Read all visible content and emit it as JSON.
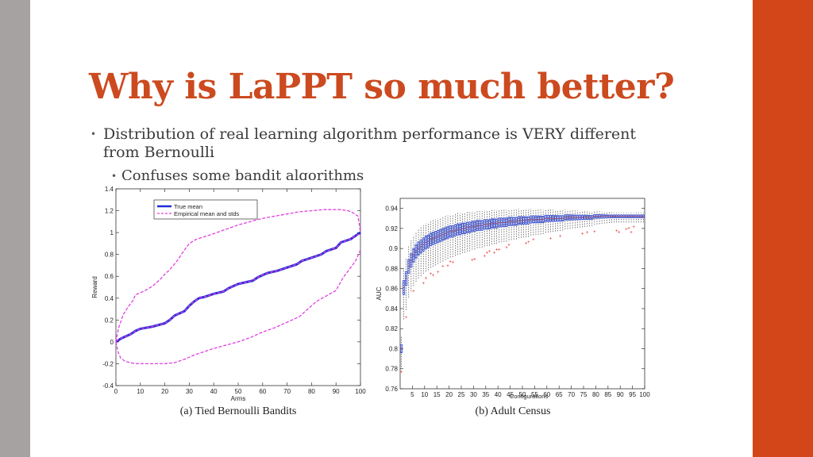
{
  "slide": {
    "title": "Why is LaPPT so much better?",
    "colors": {
      "title": "#cc4a1f",
      "left_bar": "#a6a2a2",
      "right_bar": "#d24619"
    },
    "bullets": [
      {
        "text": "Distribution of real learning algorithm performance is VERY different from Bernoulli",
        "level": 1
      },
      {
        "text": "Confuses some bandit algorithms",
        "level": 2
      }
    ]
  },
  "figures": [
    {
      "caption": "(a) Tied Bernoulli Bandits"
    },
    {
      "caption": "(b) Adult Census"
    }
  ],
  "chart_data": [
    {
      "type": "line",
      "xlabel": "Arms",
      "ylabel": "Reward",
      "xlim": [
        0,
        100
      ],
      "ylim": [
        -0.4,
        1.4
      ],
      "xticks": [
        0,
        10,
        20,
        30,
        40,
        50,
        60,
        70,
        80,
        90,
        100
      ],
      "yticks": [
        -0.4,
        -0.2,
        0,
        0.2,
        0.4,
        0.6,
        0.8,
        1,
        1.2,
        1.4
      ],
      "ytick_labels": [
        "-0.4",
        "-0.2",
        "0",
        "0.2",
        "0.4",
        "0.6",
        "0.8",
        "1",
        "1.2",
        "1.4"
      ],
      "grid": false,
      "legend": "top-left",
      "series": [
        {
          "name": "True mean",
          "style": "solid",
          "color": "#1f2bd6",
          "x": [
            0,
            2,
            4,
            6,
            8,
            10,
            15,
            20,
            22,
            24,
            28,
            30,
            32,
            34,
            36,
            40,
            44,
            46,
            48,
            50,
            52,
            56,
            58,
            60,
            62,
            66,
            70,
            74,
            76,
            80,
            84,
            86,
            90,
            92,
            96,
            98,
            100
          ],
          "y": [
            0.0,
            0.03,
            0.05,
            0.07,
            0.1,
            0.12,
            0.14,
            0.17,
            0.2,
            0.24,
            0.28,
            0.33,
            0.37,
            0.4,
            0.41,
            0.44,
            0.46,
            0.49,
            0.51,
            0.53,
            0.54,
            0.56,
            0.59,
            0.61,
            0.63,
            0.65,
            0.68,
            0.71,
            0.74,
            0.77,
            0.8,
            0.83,
            0.86,
            0.91,
            0.94,
            0.97,
            1.0
          ]
        },
        {
          "name": "Empirical mean and stds",
          "style": "dashed",
          "color": "#e040e0",
          "x": [
            0,
            2,
            4,
            6,
            8,
            10,
            15,
            20,
            22,
            24,
            28,
            30,
            32,
            34,
            36,
            40,
            44,
            46,
            48,
            50,
            52,
            56,
            58,
            60,
            62,
            66,
            70,
            74,
            76,
            80,
            84,
            86,
            90,
            92,
            96,
            98,
            100
          ],
          "y": [
            0.01,
            0.03,
            0.05,
            0.07,
            0.1,
            0.12,
            0.14,
            0.17,
            0.2,
            0.24,
            0.28,
            0.33,
            0.37,
            0.4,
            0.41,
            0.44,
            0.46,
            0.49,
            0.51,
            0.53,
            0.54,
            0.56,
            0.59,
            0.61,
            0.63,
            0.65,
            0.68,
            0.71,
            0.74,
            0.77,
            0.8,
            0.83,
            0.86,
            0.91,
            0.94,
            0.97,
            0.99
          ]
        },
        {
          "name": "",
          "style": "dashed",
          "color": "#e040e0",
          "x": [
            0,
            1,
            3,
            5,
            7,
            8,
            10,
            12,
            15,
            18,
            20,
            22,
            25,
            28,
            30,
            33,
            36,
            40,
            45,
            50,
            55,
            60,
            65,
            70,
            75,
            80,
            85,
            88,
            92,
            95,
            97,
            99,
            100
          ],
          "y": [
            0.0,
            0.12,
            0.25,
            0.32,
            0.38,
            0.43,
            0.45,
            0.47,
            0.51,
            0.57,
            0.62,
            0.66,
            0.74,
            0.84,
            0.9,
            0.94,
            0.96,
            0.99,
            1.03,
            1.07,
            1.1,
            1.13,
            1.15,
            1.17,
            1.19,
            1.2,
            1.21,
            1.21,
            1.21,
            1.2,
            1.18,
            1.15,
            1.0
          ]
        },
        {
          "name": "",
          "style": "dashed",
          "color": "#e040e0",
          "x": [
            0,
            1,
            2,
            4,
            6,
            8,
            12,
            16,
            20,
            24,
            28,
            32,
            36,
            40,
            45,
            50,
            55,
            60,
            65,
            70,
            75,
            78,
            82,
            86,
            90,
            93,
            96,
            98,
            100
          ],
          "y": [
            0.0,
            -0.1,
            -0.15,
            -0.18,
            -0.19,
            -0.2,
            -0.2,
            -0.2,
            -0.2,
            -0.19,
            -0.16,
            -0.12,
            -0.09,
            -0.06,
            -0.03,
            0.0,
            0.04,
            0.09,
            0.13,
            0.18,
            0.23,
            0.29,
            0.37,
            0.42,
            0.47,
            0.59,
            0.68,
            0.74,
            0.84
          ]
        }
      ]
    },
    {
      "type": "box",
      "xlabel": "Configurations",
      "ylabel": "AUC",
      "xlim": [
        0,
        100
      ],
      "ylim": [
        0.76,
        0.95
      ],
      "xticks": [
        5,
        10,
        15,
        20,
        25,
        30,
        35,
        40,
        45,
        50,
        55,
        60,
        65,
        70,
        75,
        80,
        85,
        90,
        95,
        100
      ],
      "yticks": [
        0.76,
        0.78,
        0.8,
        0.82,
        0.84,
        0.86,
        0.88,
        0.9,
        0.92,
        0.94
      ],
      "ytick_labels": [
        "0.76",
        "0.78",
        "0.8",
        "0.82",
        "0.84",
        "0.86",
        "0.88",
        "0.9",
        "0.92",
        "0.94"
      ],
      "grid": false,
      "box_color": "#4a5fd9",
      "outlier_color": "#e02020",
      "medians": [
        0.8,
        0.861,
        0.87,
        0.882,
        0.888,
        0.893,
        0.897,
        0.9,
        0.902,
        0.904,
        0.906,
        0.907,
        0.909,
        0.91,
        0.911,
        0.912,
        0.913,
        0.914,
        0.915,
        0.916,
        0.917,
        0.917,
        0.918,
        0.919,
        0.919,
        0.92,
        0.92,
        0.921,
        0.921,
        0.922,
        0.922,
        0.923,
        0.923,
        0.923,
        0.924,
        0.924,
        0.924,
        0.925,
        0.925,
        0.925,
        0.926,
        0.926,
        0.926,
        0.926,
        0.927,
        0.927,
        0.927,
        0.927,
        0.928,
        0.928,
        0.928,
        0.928,
        0.928,
        0.929,
        0.929,
        0.929,
        0.929,
        0.929,
        0.929,
        0.93,
        0.93,
        0.93,
        0.93,
        0.93,
        0.93,
        0.93,
        0.93,
        0.931,
        0.931,
        0.931,
        0.931,
        0.931,
        0.931,
        0.931,
        0.931,
        0.931,
        0.931,
        0.931,
        0.931,
        0.932,
        0.932,
        0.932,
        0.932,
        0.932,
        0.932,
        0.932,
        0.932,
        0.932,
        0.932,
        0.932,
        0.932,
        0.932,
        0.932,
        0.932,
        0.932,
        0.932,
        0.932,
        0.932,
        0.932,
        0.932
      ]
    }
  ]
}
